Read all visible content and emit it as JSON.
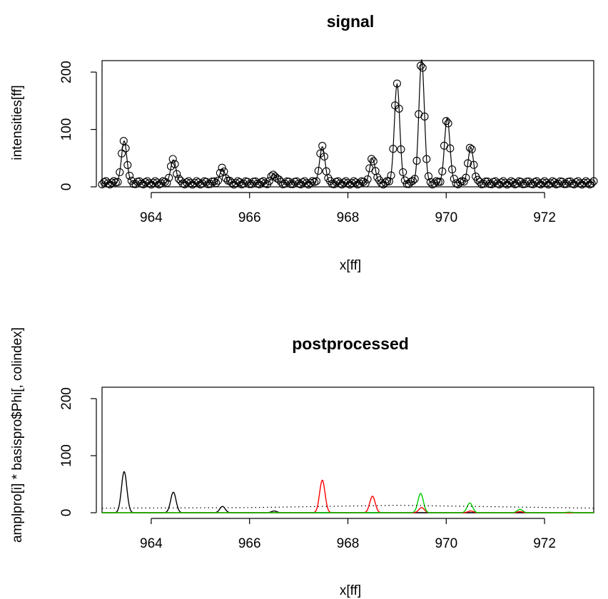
{
  "chart_data": [
    {
      "type": "line",
      "title": "signal",
      "xlabel": "x[ff]",
      "ylabel": "intensities[ff]",
      "xlim": [
        963,
        973
      ],
      "ylim": [
        0,
        220
      ],
      "xticks": [
        964,
        966,
        968,
        970,
        972
      ],
      "yticks": [
        0,
        100,
        200
      ],
      "baseline": 7,
      "markers": "open-circle",
      "peaks": [
        {
          "x": 963.45,
          "height": 73
        },
        {
          "x": 964.45,
          "height": 40
        },
        {
          "x": 965.45,
          "height": 24
        },
        {
          "x": 966.5,
          "height": 15
        },
        {
          "x": 967.48,
          "height": 63
        },
        {
          "x": 968.5,
          "height": 42
        },
        {
          "x": 969.0,
          "height": 172
        },
        {
          "x": 969.5,
          "height": 215
        },
        {
          "x": 970.02,
          "height": 113
        },
        {
          "x": 970.5,
          "height": 62
        }
      ]
    },
    {
      "type": "line",
      "title": "postprocessed",
      "xlabel": "x[ff]",
      "ylabel": "amplpro[i] * basispro$Phi[, colindex]",
      "xlim": [
        963,
        973
      ],
      "ylim": [
        0,
        220
      ],
      "xticks": [
        964,
        966,
        968,
        970,
        972
      ],
      "yticks": [
        0,
        100,
        200
      ],
      "series": [
        {
          "color": "#000000",
          "peaks": [
            {
              "x": 963.45,
              "height": 72
            },
            {
              "x": 964.45,
              "height": 36
            },
            {
              "x": 965.45,
              "height": 11
            },
            {
              "x": 966.5,
              "height": 3
            }
          ]
        },
        {
          "color": "#ff0000",
          "peaks": [
            {
              "x": 967.48,
              "height": 57
            },
            {
              "x": 968.5,
              "height": 29
            },
            {
              "x": 969.5,
              "height": 9
            },
            {
              "x": 970.5,
              "height": 3
            },
            {
              "x": 971.5,
              "height": 2
            }
          ]
        },
        {
          "color": "#00cd00",
          "peaks": [
            {
              "x": 969.48,
              "height": 34
            },
            {
              "x": 970.48,
              "height": 17
            },
            {
              "x": 971.5,
              "height": 6
            },
            {
              "x": 972.5,
              "height": 1
            }
          ]
        },
        {
          "color": "#000000",
          "dotted": true,
          "x": [
            963,
            966,
            969,
            973
          ],
          "y": [
            8,
            9,
            13,
            8
          ]
        }
      ]
    }
  ]
}
